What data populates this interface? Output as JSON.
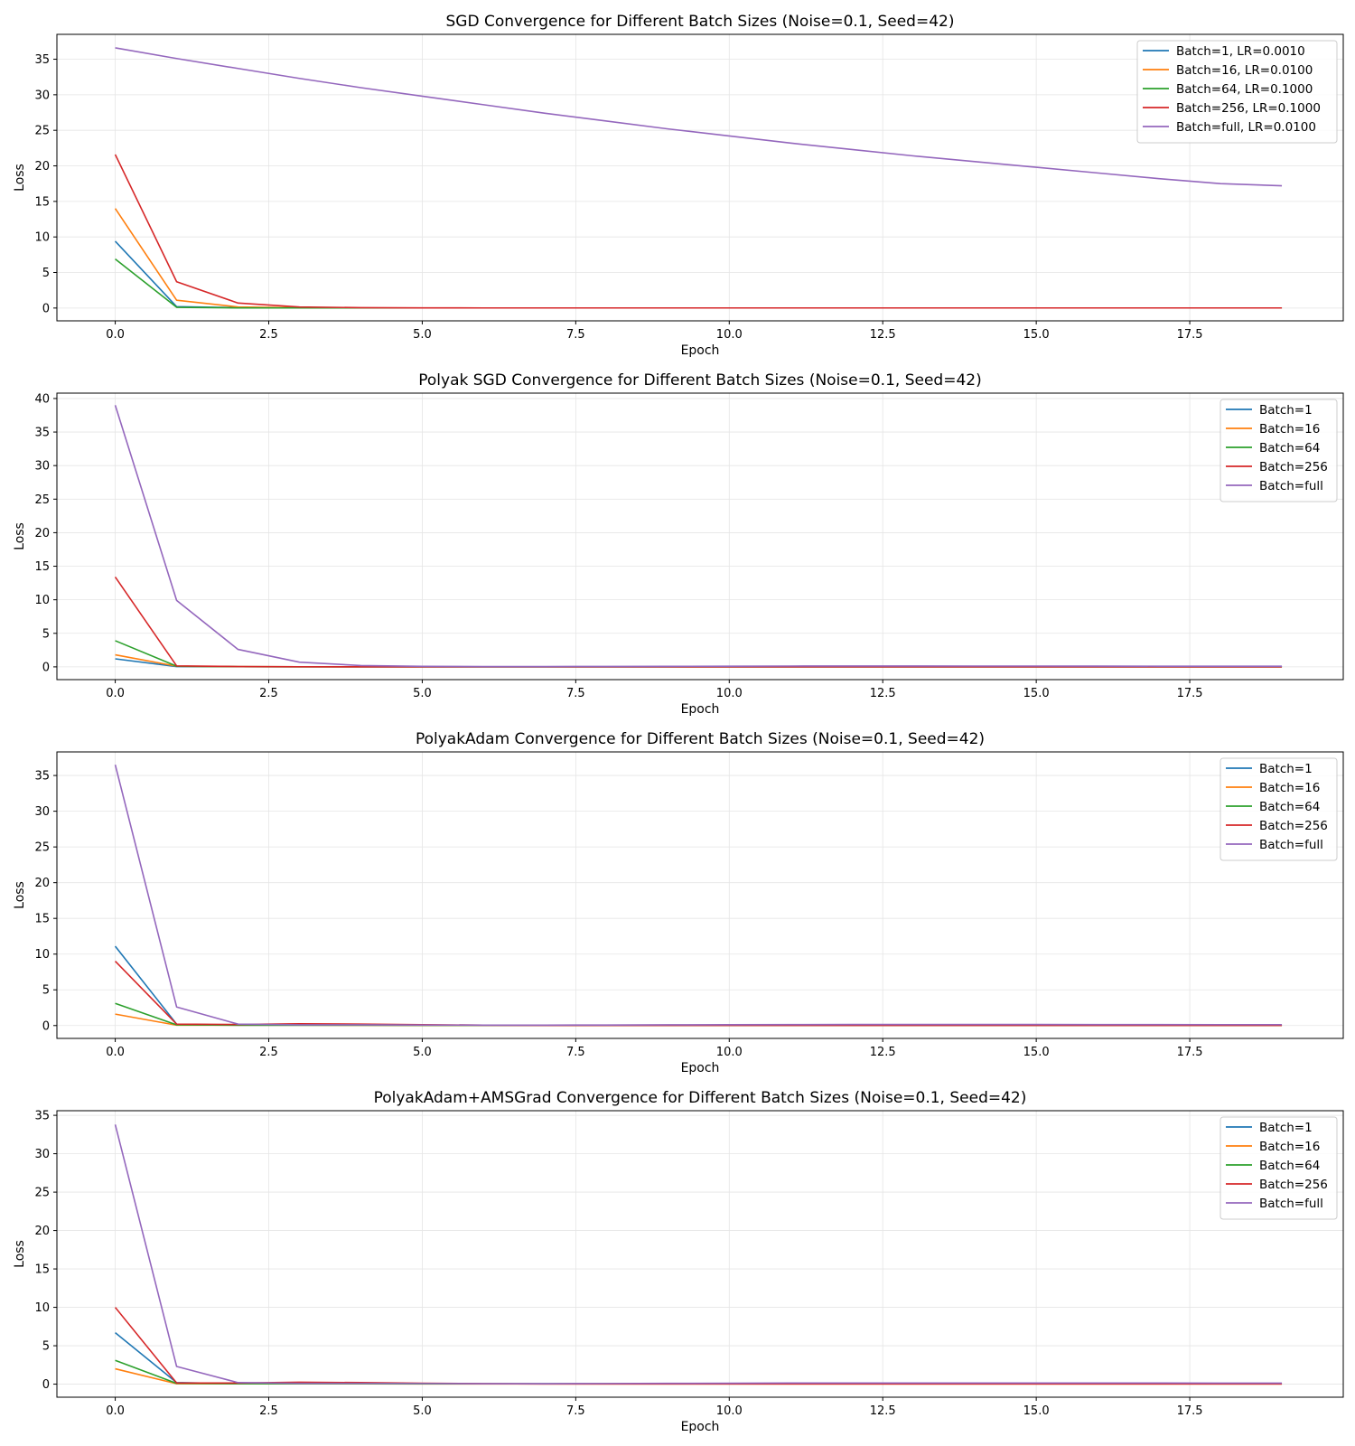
{
  "colors": {
    "blue": "#1f77b4",
    "orange": "#ff7f0e",
    "green": "#2ca02c",
    "red": "#d62728",
    "purple": "#9467bd",
    "grid": "#e5e5e5"
  },
  "chart_data": [
    {
      "type": "line",
      "title": "SGD Convergence for Different Batch Sizes (Noise=0.1, Seed=42)",
      "xlabel": "Epoch",
      "ylabel": "Loss",
      "xlim": [
        -0.95,
        20.0
      ],
      "ylim": [
        -1.8,
        38.5
      ],
      "xticks": [
        0.0,
        2.5,
        5.0,
        7.5,
        10.0,
        12.5,
        15.0,
        17.5
      ],
      "xtick_labels": [
        "0.0",
        "2.5",
        "5.0",
        "7.5",
        "10.0",
        "12.5",
        "15.0",
        "17.5"
      ],
      "yticks": [
        0,
        5,
        10,
        15,
        20,
        25,
        30,
        35
      ],
      "ytick_labels": [
        "0",
        "5",
        "10",
        "15",
        "20",
        "25",
        "30",
        "35"
      ],
      "grid": true,
      "legend": "top-right",
      "x": [
        0,
        1,
        2,
        3,
        4,
        5,
        6,
        7,
        8,
        9,
        10,
        11,
        12,
        13,
        14,
        15,
        16,
        17,
        18,
        19
      ],
      "series": [
        {
          "name": "Batch=1, LR=0.0010",
          "color": "#1f77b4",
          "values": [
            9.4,
            0.2,
            0.05,
            0.02,
            0.01,
            0.01,
            0.01,
            0.01,
            0.01,
            0.01,
            0.01,
            0.01,
            0.01,
            0.01,
            0.01,
            0.01,
            0.01,
            0.01,
            0.01,
            0.01
          ]
        },
        {
          "name": "Batch=16, LR=0.0100",
          "color": "#ff7f0e",
          "values": [
            14.0,
            1.1,
            0.15,
            0.03,
            0.01,
            0.01,
            0.01,
            0.01,
            0.01,
            0.01,
            0.01,
            0.01,
            0.01,
            0.01,
            0.01,
            0.01,
            0.01,
            0.01,
            0.01,
            0.01
          ]
        },
        {
          "name": "Batch=64, LR=0.1000",
          "color": "#2ca02c",
          "values": [
            6.9,
            0.1,
            0.02,
            0.01,
            0.01,
            0.01,
            0.01,
            0.01,
            0.01,
            0.01,
            0.01,
            0.01,
            0.01,
            0.01,
            0.01,
            0.01,
            0.01,
            0.01,
            0.01,
            0.01
          ]
        },
        {
          "name": "Batch=256, LR=0.1000",
          "color": "#d62728",
          "values": [
            21.6,
            3.7,
            0.7,
            0.15,
            0.05,
            0.02,
            0.01,
            0.01,
            0.01,
            0.01,
            0.01,
            0.01,
            0.01,
            0.01,
            0.01,
            0.01,
            0.01,
            0.01,
            0.01,
            0.01
          ]
        },
        {
          "name": "Batch=full, LR=0.0100",
          "color": "#9467bd",
          "values": [
            36.6,
            35.1,
            33.7,
            32.3,
            31.0,
            29.8,
            28.6,
            27.4,
            26.3,
            25.2,
            24.2,
            23.2,
            22.3,
            21.4,
            20.6,
            19.8,
            19.0,
            18.2,
            17.5,
            17.2
          ]
        }
      ]
    },
    {
      "type": "line",
      "title": "Polyak SGD Convergence for Different Batch Sizes (Noise=0.1, Seed=42)",
      "xlabel": "Epoch",
      "ylabel": "Loss",
      "xlim": [
        -0.95,
        20.0
      ],
      "ylim": [
        -1.9,
        40.8
      ],
      "xticks": [
        0.0,
        2.5,
        5.0,
        7.5,
        10.0,
        12.5,
        15.0,
        17.5
      ],
      "xtick_labels": [
        "0.0",
        "2.5",
        "5.0",
        "7.5",
        "10.0",
        "12.5",
        "15.0",
        "17.5"
      ],
      "yticks": [
        0,
        5,
        10,
        15,
        20,
        25,
        30,
        35,
        40
      ],
      "ytick_labels": [
        "0",
        "5",
        "10",
        "15",
        "20",
        "25",
        "30",
        "35",
        "40"
      ],
      "grid": true,
      "legend": "top-right",
      "x": [
        0,
        1,
        2,
        3,
        4,
        5,
        6,
        7,
        8,
        9,
        10,
        11,
        12,
        13,
        14,
        15,
        16,
        17,
        18,
        19
      ],
      "series": [
        {
          "name": "Batch=1",
          "color": "#1f77b4",
          "values": [
            1.2,
            0.05,
            0.02,
            0.01,
            0.01,
            0.01,
            0.01,
            0.01,
            0.01,
            0.01,
            0.01,
            0.01,
            0.01,
            0.01,
            0.01,
            0.01,
            0.01,
            0.01,
            0.01,
            0.01
          ]
        },
        {
          "name": "Batch=16",
          "color": "#ff7f0e",
          "values": [
            1.8,
            0.1,
            0.03,
            0.01,
            0.01,
            0.01,
            0.01,
            0.01,
            0.01,
            0.01,
            0.01,
            0.01,
            0.01,
            0.01,
            0.01,
            0.01,
            0.01,
            0.01,
            0.01,
            0.01
          ]
        },
        {
          "name": "Batch=64",
          "color": "#2ca02c",
          "values": [
            3.9,
            0.1,
            0.03,
            0.01,
            0.01,
            0.01,
            0.01,
            0.01,
            0.01,
            0.01,
            0.01,
            0.01,
            0.01,
            0.01,
            0.01,
            0.01,
            0.01,
            0.01,
            0.01,
            0.01
          ]
        },
        {
          "name": "Batch=256",
          "color": "#d62728",
          "values": [
            13.4,
            0.15,
            0.05,
            0.02,
            0.01,
            0.01,
            0.01,
            0.01,
            0.01,
            0.01,
            0.01,
            0.01,
            0.01,
            0.01,
            0.01,
            0.01,
            0.01,
            0.01,
            0.01,
            0.01
          ]
        },
        {
          "name": "Batch=full",
          "color": "#9467bd",
          "values": [
            39.0,
            9.9,
            2.6,
            0.7,
            0.2,
            0.08,
            0.05,
            0.05,
            0.06,
            0.08,
            0.1,
            0.12,
            0.13,
            0.13,
            0.12,
            0.12,
            0.11,
            0.1,
            0.1,
            0.1
          ]
        }
      ]
    },
    {
      "type": "line",
      "title": "PolyakAdam Convergence for Different Batch Sizes (Noise=0.1, Seed=42)",
      "xlabel": "Epoch",
      "ylabel": "Loss",
      "xlim": [
        -0.95,
        20.0
      ],
      "ylim": [
        -1.8,
        38.3
      ],
      "xticks": [
        0.0,
        2.5,
        5.0,
        7.5,
        10.0,
        12.5,
        15.0,
        17.5
      ],
      "xtick_labels": [
        "0.0",
        "2.5",
        "5.0",
        "7.5",
        "10.0",
        "12.5",
        "15.0",
        "17.5"
      ],
      "yticks": [
        0,
        5,
        10,
        15,
        20,
        25,
        30,
        35
      ],
      "ytick_labels": [
        "0",
        "5",
        "10",
        "15",
        "20",
        "25",
        "30",
        "35"
      ],
      "grid": true,
      "legend": "top-right",
      "x": [
        0,
        1,
        2,
        3,
        4,
        5,
        6,
        7,
        8,
        9,
        10,
        11,
        12,
        13,
        14,
        15,
        16,
        17,
        18,
        19
      ],
      "series": [
        {
          "name": "Batch=1",
          "color": "#1f77b4",
          "values": [
            11.1,
            0.2,
            0.05,
            0.05,
            0.05,
            0.04,
            0.04,
            0.04,
            0.04,
            0.05,
            0.05,
            0.05,
            0.05,
            0.05,
            0.05,
            0.05,
            0.05,
            0.05,
            0.05,
            0.05
          ]
        },
        {
          "name": "Batch=16",
          "color": "#ff7f0e",
          "values": [
            1.6,
            0.05,
            0.05,
            0.05,
            0.04,
            0.03,
            0.03,
            0.03,
            0.03,
            0.03,
            0.03,
            0.03,
            0.03,
            0.03,
            0.03,
            0.03,
            0.03,
            0.03,
            0.03,
            0.03
          ]
        },
        {
          "name": "Batch=64",
          "color": "#2ca02c",
          "values": [
            3.1,
            0.1,
            0.05,
            0.05,
            0.05,
            0.04,
            0.04,
            0.04,
            0.04,
            0.04,
            0.04,
            0.04,
            0.04,
            0.04,
            0.04,
            0.04,
            0.04,
            0.04,
            0.04,
            0.04
          ]
        },
        {
          "name": "Batch=256",
          "color": "#d62728",
          "values": [
            9.0,
            0.2,
            0.15,
            0.25,
            0.2,
            0.12,
            0.06,
            0.03,
            0.02,
            0.02,
            0.02,
            0.02,
            0.02,
            0.02,
            0.02,
            0.02,
            0.02,
            0.02,
            0.02,
            0.02
          ]
        },
        {
          "name": "Batch=full",
          "color": "#9467bd",
          "values": [
            36.5,
            2.6,
            0.2,
            0.1,
            0.1,
            0.08,
            0.06,
            0.06,
            0.08,
            0.1,
            0.12,
            0.14,
            0.15,
            0.15,
            0.15,
            0.15,
            0.14,
            0.14,
            0.13,
            0.13
          ]
        }
      ]
    },
    {
      "type": "line",
      "title": "PolyakAdam+AMSGrad Convergence for Different Batch Sizes (Noise=0.1, Seed=42)",
      "xlabel": "Epoch",
      "ylabel": "Loss",
      "xlim": [
        -0.95,
        20.0
      ],
      "ylim": [
        -1.7,
        35.6
      ],
      "xticks": [
        0.0,
        2.5,
        5.0,
        7.5,
        10.0,
        12.5,
        15.0,
        17.5
      ],
      "xtick_labels": [
        "0.0",
        "2.5",
        "5.0",
        "7.5",
        "10.0",
        "12.5",
        "15.0",
        "17.5"
      ],
      "yticks": [
        0,
        5,
        10,
        15,
        20,
        25,
        30,
        35
      ],
      "ytick_labels": [
        "0",
        "5",
        "10",
        "15",
        "20",
        "25",
        "30",
        "35"
      ],
      "grid": true,
      "legend": "top-right",
      "x": [
        0,
        1,
        2,
        3,
        4,
        5,
        6,
        7,
        8,
        9,
        10,
        11,
        12,
        13,
        14,
        15,
        16,
        17,
        18,
        19
      ],
      "series": [
        {
          "name": "Batch=1",
          "color": "#1f77b4",
          "values": [
            6.7,
            0.2,
            0.05,
            0.05,
            0.05,
            0.04,
            0.04,
            0.04,
            0.04,
            0.05,
            0.05,
            0.05,
            0.05,
            0.05,
            0.05,
            0.05,
            0.05,
            0.05,
            0.05,
            0.05
          ]
        },
        {
          "name": "Batch=16",
          "color": "#ff7f0e",
          "values": [
            2.0,
            0.05,
            0.05,
            0.05,
            0.04,
            0.03,
            0.03,
            0.03,
            0.03,
            0.03,
            0.03,
            0.03,
            0.03,
            0.03,
            0.03,
            0.03,
            0.03,
            0.03,
            0.03,
            0.03
          ]
        },
        {
          "name": "Batch=64",
          "color": "#2ca02c",
          "values": [
            3.1,
            0.1,
            0.05,
            0.05,
            0.05,
            0.04,
            0.04,
            0.04,
            0.04,
            0.04,
            0.04,
            0.04,
            0.04,
            0.04,
            0.04,
            0.04,
            0.04,
            0.04,
            0.04,
            0.04
          ]
        },
        {
          "name": "Batch=256",
          "color": "#d62728",
          "values": [
            10.0,
            0.15,
            0.15,
            0.25,
            0.2,
            0.12,
            0.06,
            0.03,
            0.02,
            0.02,
            0.02,
            0.02,
            0.02,
            0.02,
            0.02,
            0.02,
            0.02,
            0.02,
            0.02,
            0.02
          ]
        },
        {
          "name": "Batch=full",
          "color": "#9467bd",
          "values": [
            33.8,
            2.3,
            0.2,
            0.1,
            0.1,
            0.08,
            0.06,
            0.06,
            0.08,
            0.1,
            0.12,
            0.14,
            0.15,
            0.15,
            0.15,
            0.15,
            0.14,
            0.14,
            0.13,
            0.13
          ]
        }
      ]
    }
  ]
}
